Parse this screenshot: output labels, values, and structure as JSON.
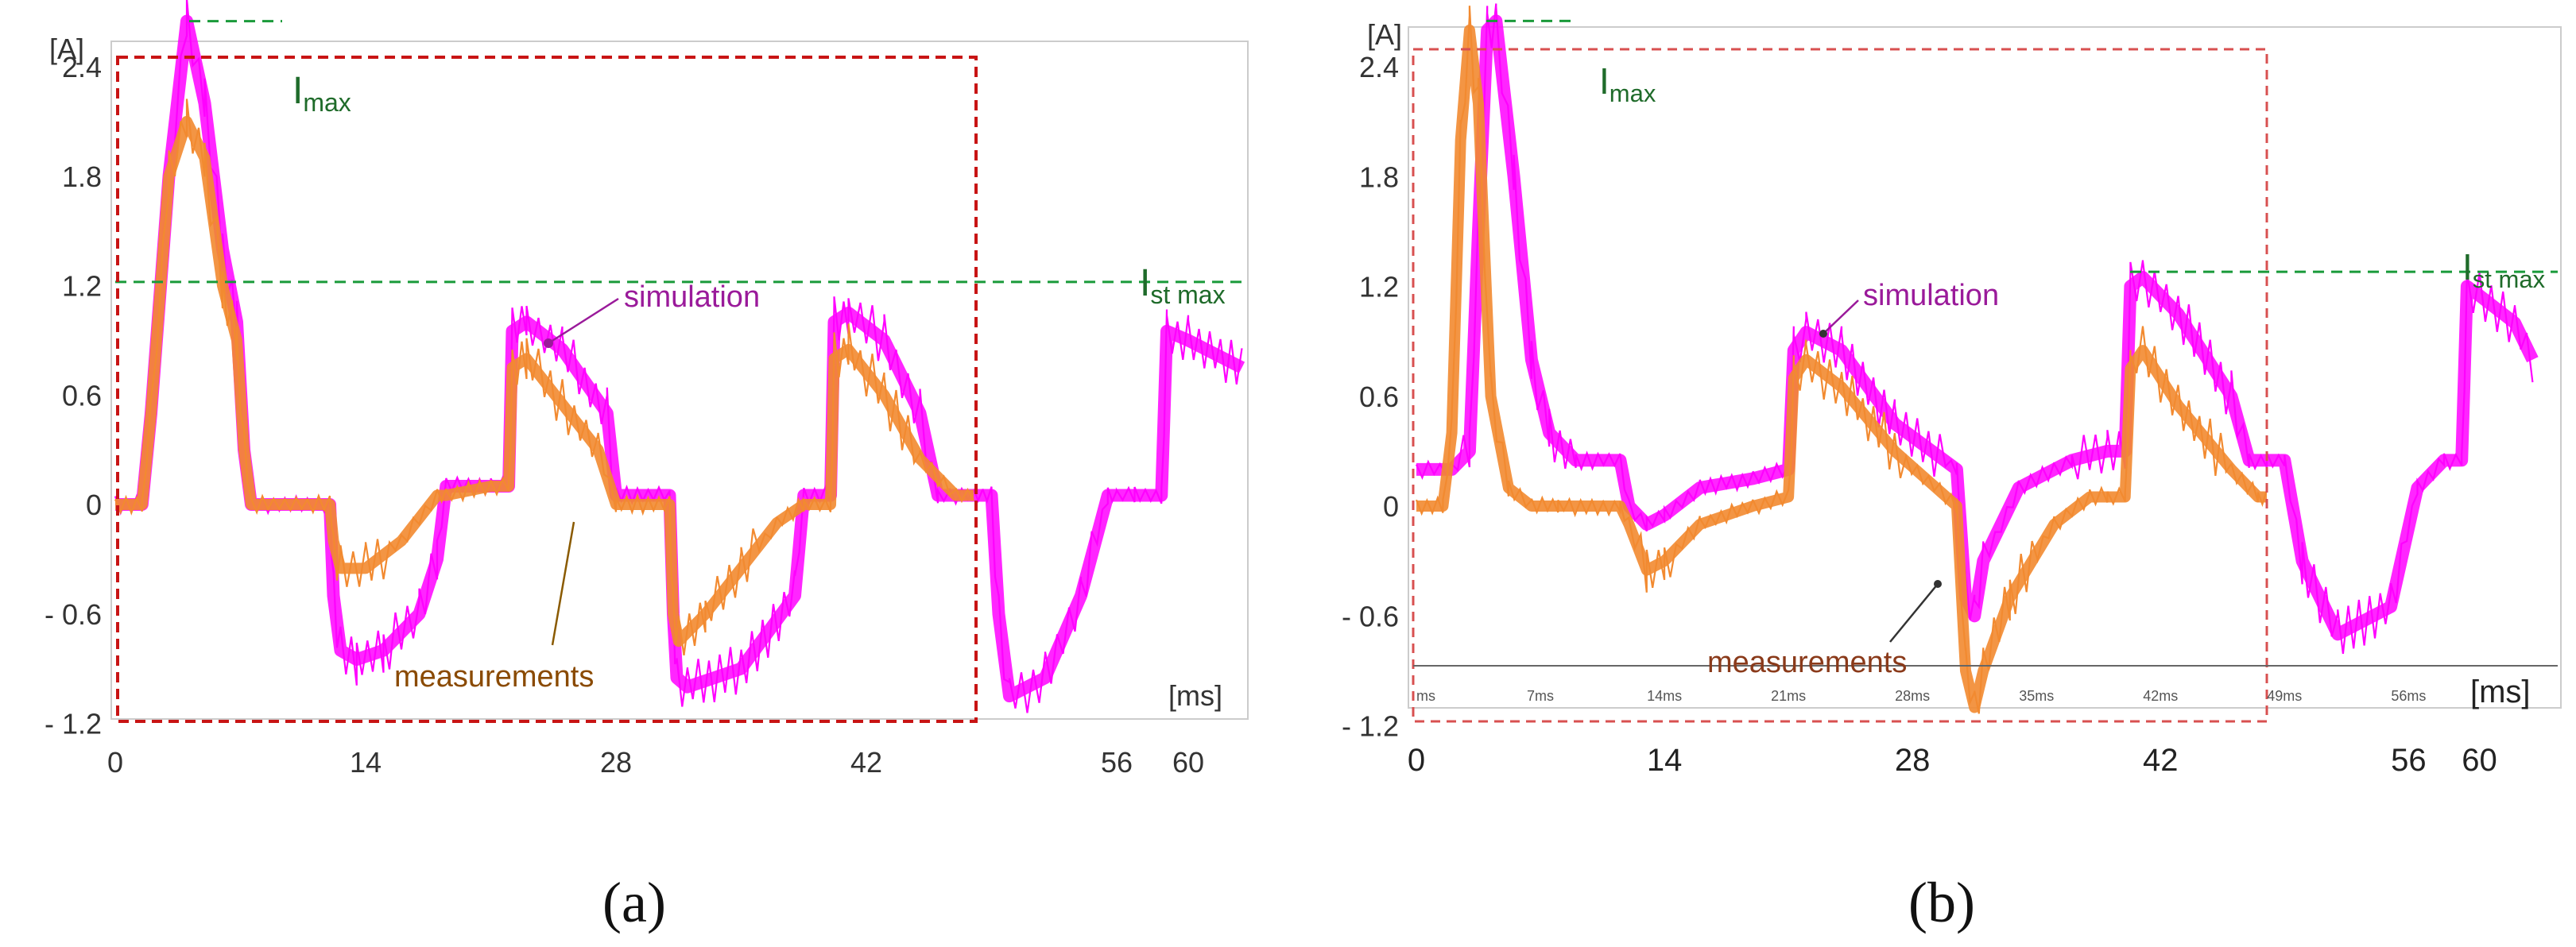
{
  "chart_data": [
    {
      "type": "line",
      "panel_label": "(a)",
      "y_unit_label": "[A]",
      "x_unit_label": "[ms]",
      "xlim": [
        0,
        63
      ],
      "ylim": [
        -1.2,
        2.7
      ],
      "x_ticks": [
        "0",
        "14",
        "28",
        "42",
        "56",
        "60"
      ],
      "y_ticks": [
        "2.4",
        "1.8",
        "1.2",
        "0.6",
        "0",
        "- 0.6",
        "- 1.2"
      ],
      "imax_label": {
        "main": "I",
        "sub": "max"
      },
      "istmax_label": {
        "main": "I",
        "sub": "st max"
      },
      "imax_value": 2.65,
      "istmax_value": 1.22,
      "window_ms": [
        0,
        48
      ],
      "label_simulation": "simulation",
      "label_measurements": "measurements",
      "series": [
        {
          "name": "simulation",
          "color": "#ff00ff",
          "x": [
            0,
            1.5,
            2.0,
            3.0,
            4.0,
            5.0,
            6.0,
            6.8,
            7.2,
            7.6,
            12,
            12.2,
            12.6,
            13.5,
            15,
            17,
            18,
            18.5,
            21,
            22,
            22.2,
            23,
            25,
            27.5,
            28,
            31,
            31.2,
            31.4,
            32,
            35,
            38,
            38.5,
            40,
            40.2,
            41,
            43,
            45,
            46,
            48,
            48.5,
            49,
            49.4,
            50,
            52,
            54,
            55.5,
            56,
            57,
            58.5,
            58.8,
            60,
            63
          ],
          "y": [
            0,
            0,
            0.5,
            1.8,
            2.65,
            2.2,
            1.4,
            1.0,
            0.3,
            0,
            0,
            -0.5,
            -0.8,
            -0.85,
            -0.8,
            -0.6,
            -0.3,
            0.1,
            0.1,
            0.1,
            0.95,
            1.0,
            0.85,
            0.5,
            0.05,
            0.05,
            -0.6,
            -0.95,
            -1.0,
            -0.9,
            -0.5,
            0.05,
            0.05,
            1.0,
            1.05,
            0.9,
            0.5,
            0.05,
            0.05,
            0.05,
            0.05,
            -0.6,
            -1.05,
            -0.95,
            -0.5,
            0.05,
            0.05,
            0.05,
            0.05,
            0.95,
            0.9,
            0.75
          ]
        },
        {
          "name": "measurements",
          "color": "#f28a30",
          "x": [
            0,
            1.5,
            2.0,
            3.0,
            4.0,
            5.0,
            6.0,
            6.8,
            7.2,
            7.6,
            12,
            12.2,
            12.6,
            14,
            16,
            18,
            18.5,
            21,
            22,
            22.2,
            23,
            25,
            27,
            28,
            31,
            31.2,
            31.5,
            33,
            35,
            37,
            38.5,
            40,
            40.2,
            41,
            43,
            45,
            47,
            48
          ],
          "y": [
            0,
            0,
            0.5,
            1.8,
            2.1,
            1.9,
            1.2,
            0.9,
            0.3,
            0,
            0,
            -0.2,
            -0.35,
            -0.35,
            -0.2,
            0.05,
            0.05,
            0.1,
            0.1,
            0.75,
            0.8,
            0.55,
            0.3,
            0.0,
            0.0,
            -0.6,
            -0.75,
            -0.6,
            -0.35,
            -0.1,
            0.0,
            0.0,
            0.8,
            0.85,
            0.6,
            0.25,
            0.05,
            0.05
          ]
        }
      ]
    },
    {
      "type": "line",
      "panel_label": "(b)",
      "y_unit_label": "[A]",
      "x_unit_label": "[ms]",
      "xlim": [
        0,
        63
      ],
      "ylim": [
        -1.2,
        2.7
      ],
      "x_ticks": [
        "0",
        "14",
        "28",
        "42",
        "56",
        "60"
      ],
      "y_ticks": [
        "2.4",
        "1.8",
        "1.2",
        "0.6",
        "0",
        "- 0.6",
        "- 1.2"
      ],
      "inner_ticks": [
        "ms",
        "7ms",
        "14ms",
        "21ms",
        "28ms",
        "35ms",
        "42ms",
        "49ms",
        "56ms"
      ],
      "imax_label": {
        "main": "I",
        "sub": "max"
      },
      "istmax_label": {
        "main": "I",
        "sub": "st max"
      },
      "imax_value": 2.65,
      "istmax_value": 1.28,
      "window_ms": [
        0,
        48
      ],
      "label_simulation": "simulation",
      "label_measurements": "measurements",
      "series": [
        {
          "name": "simulation",
          "color": "#ff00ff",
          "x": [
            0,
            2,
            3,
            3.5,
            4.0,
            4.5,
            5.5,
            6.5,
            7.5,
            9,
            11.5,
            12,
            13,
            14,
            16,
            19,
            21,
            21.3,
            22,
            24,
            27,
            30.5,
            31,
            31.5,
            32,
            34,
            36,
            37,
            39,
            40,
            40.3,
            41,
            43,
            46,
            47,
            48,
            49,
            50,
            52,
            55,
            56.5,
            58,
            59,
            59.3,
            60,
            62,
            63
          ],
          "y": [
            0.2,
            0.2,
            0.3,
            1.5,
            2.6,
            2.65,
            1.8,
            0.8,
            0.4,
            0.25,
            0.25,
            0.0,
            -0.1,
            -0.05,
            0.1,
            0.15,
            0.2,
            0.85,
            0.95,
            0.85,
            0.45,
            0.2,
            -0.5,
            -0.6,
            -0.3,
            0.1,
            0.2,
            0.25,
            0.3,
            0.3,
            1.2,
            1.25,
            1.05,
            0.6,
            0.25,
            0.25,
            0.25,
            -0.3,
            -0.7,
            -0.55,
            0.1,
            0.25,
            0.25,
            1.2,
            1.15,
            1.0,
            0.8
          ]
        },
        {
          "name": "measurements",
          "color": "#f28a30",
          "x": [
            0,
            1.5,
            2.0,
            2.5,
            3.0,
            3.5,
            4.2,
            5.2,
            6.5,
            8,
            11.5,
            12,
            13,
            14,
            16,
            19,
            21,
            21.3,
            22,
            24,
            27,
            30.5,
            31,
            31.5,
            32,
            33.5,
            36,
            38,
            39,
            40,
            40.3,
            41,
            43,
            46,
            47.5,
            48
          ],
          "y": [
            0.0,
            0.0,
            0.4,
            2.0,
            2.6,
            2.2,
            0.6,
            0.1,
            0.0,
            0.0,
            0.0,
            -0.1,
            -0.35,
            -0.3,
            -0.1,
            0.0,
            0.05,
            0.7,
            0.8,
            0.65,
            0.3,
            0.0,
            -0.9,
            -1.1,
            -0.9,
            -0.5,
            -0.1,
            0.05,
            0.05,
            0.05,
            0.75,
            0.85,
            0.55,
            0.2,
            0.05,
            0.05
          ]
        }
      ]
    }
  ]
}
